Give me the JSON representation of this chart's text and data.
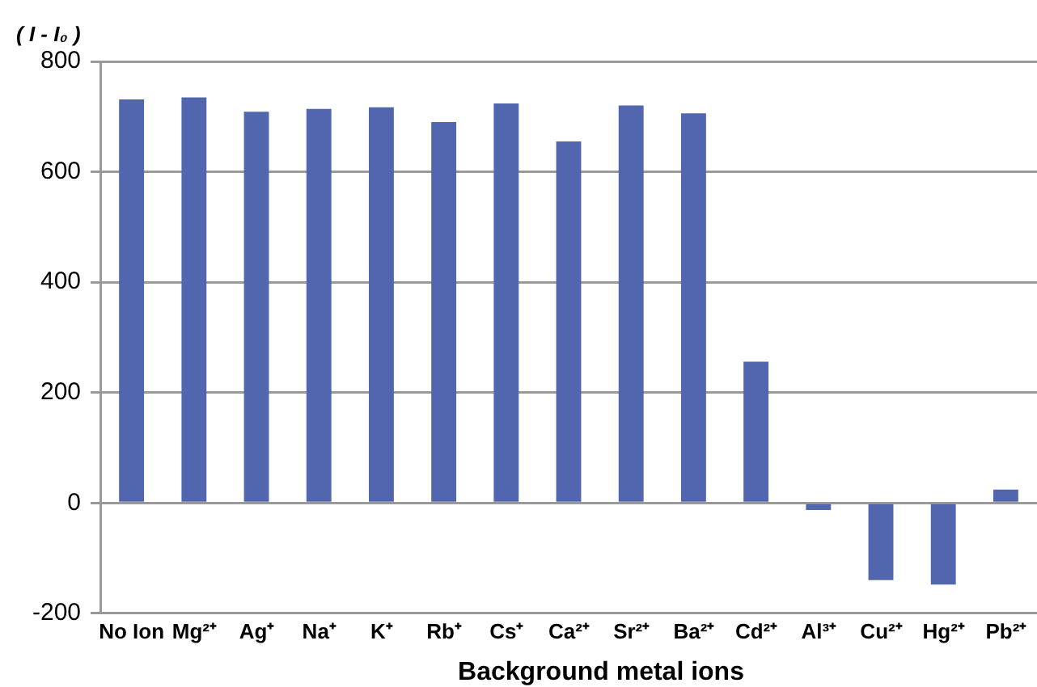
{
  "chart_data": {
    "type": "bar",
    "ylabel": "( I - I₀ )",
    "xlabel": "Background metal ions",
    "categories": [
      "No Ion",
      "Mg²⁺",
      "Ag⁺",
      "Na⁺",
      "K⁺",
      "Rb⁺",
      "Cs⁺",
      "Ca²⁺",
      "Sr²⁺",
      "Ba²⁺",
      "Cd²⁺",
      "Al³⁺",
      "Cu²⁺",
      "Hg²⁺",
      "Pb²⁺"
    ],
    "values": [
      731,
      735,
      709,
      714,
      717,
      690,
      724,
      655,
      720,
      706,
      256,
      -13,
      -140,
      -148,
      24
    ],
    "color": "#5266b0",
    "ylim": [
      -200,
      800
    ],
    "yticks": [
      -200,
      0,
      200,
      400,
      600,
      800
    ],
    "grid": "y",
    "legend": false
  }
}
